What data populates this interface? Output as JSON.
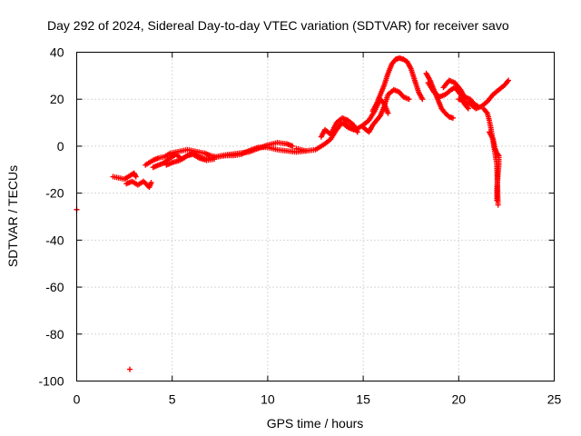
{
  "chart_data": {
    "type": "scatter",
    "title": "Day 292 of 2024, Sidereal Day-to-day VTEC variation (SDTVAR) for receiver savo",
    "xlabel": "GPS time / hours",
    "ylabel": "SDTVAR / TECUs",
    "xlim": [
      0,
      25
    ],
    "ylim": [
      -100,
      40
    ],
    "xticks": [
      0,
      5,
      10,
      15,
      20,
      25
    ],
    "yticks": [
      -100,
      -80,
      -60,
      -40,
      -20,
      0,
      20,
      40
    ],
    "grid": true,
    "marker": "+",
    "color": "#ff0000",
    "series": [
      {
        "name": "SDTVAR",
        "branches": [
          [
            [
              0.0,
              -27
            ]
          ],
          [
            [
              2.78,
              -95
            ]
          ],
          [
            [
              1.9,
              -13
            ],
            [
              2.2,
              -13.5
            ],
            [
              2.5,
              -14
            ],
            [
              2.8,
              -12.5
            ],
            [
              3.0,
              -11.5
            ],
            [
              3.1,
              -13
            ]
          ],
          [
            [
              2.6,
              -16
            ],
            [
              2.9,
              -15
            ],
            [
              3.2,
              -16.5
            ],
            [
              3.5,
              -15
            ],
            [
              3.8,
              -17.5
            ],
            [
              3.9,
              -15.5
            ]
          ],
          [
            [
              3.6,
              -8
            ],
            [
              4.0,
              -6
            ],
            [
              4.3,
              -5
            ],
            [
              4.6,
              -4.5
            ],
            [
              4.9,
              -3
            ],
            [
              5.2,
              -2.5
            ],
            [
              5.5,
              -2
            ],
            [
              5.8,
              -1.5
            ],
            [
              6.1,
              -2
            ],
            [
              6.4,
              -2.5
            ],
            [
              6.7,
              -3
            ],
            [
              7.0,
              -4
            ],
            [
              7.3,
              -4.5
            ],
            [
              7.6,
              -4
            ],
            [
              8.0,
              -3.5
            ],
            [
              8.5,
              -3
            ],
            [
              9.0,
              -2.5
            ],
            [
              9.5,
              -1
            ],
            [
              10.0,
              0.5
            ],
            [
              10.5,
              1.5
            ],
            [
              11.0,
              1
            ],
            [
              11.3,
              0
            ]
          ],
          [
            [
              4.0,
              -9
            ],
            [
              4.3,
              -8
            ],
            [
              4.6,
              -7
            ],
            [
              4.9,
              -5
            ],
            [
              5.2,
              -3.5
            ],
            [
              5.5,
              -5.5
            ],
            [
              5.8,
              -4
            ],
            [
              6.1,
              -3
            ],
            [
              6.4,
              -4.5
            ],
            [
              6.7,
              -5.5
            ],
            [
              7.0,
              -5
            ],
            [
              7.4,
              -4.5
            ],
            [
              7.8,
              -4
            ],
            [
              8.2,
              -4
            ],
            [
              8.6,
              -3.5
            ],
            [
              9.0,
              -2
            ],
            [
              9.5,
              -0.5
            ],
            [
              10.0,
              -0.5
            ],
            [
              10.5,
              -1.5
            ],
            [
              11.0,
              -2
            ],
            [
              11.5,
              -2.5
            ],
            [
              12.0,
              -2
            ]
          ],
          [
            [
              4.7,
              -8
            ],
            [
              5.0,
              -7
            ],
            [
              5.4,
              -6
            ],
            [
              5.8,
              -4
            ],
            [
              6.1,
              -3.5
            ],
            [
              6.4,
              -5
            ],
            [
              6.8,
              -6
            ],
            [
              7.2,
              -5.5
            ]
          ],
          [
            [
              11.5,
              -1
            ],
            [
              12.0,
              -2
            ],
            [
              12.5,
              -1.5
            ],
            [
              13.0,
              1
            ],
            [
              13.3,
              3
            ],
            [
              13.6,
              7
            ],
            [
              13.9,
              10
            ],
            [
              14.2,
              8
            ],
            [
              14.5,
              7
            ]
          ],
          [
            [
              12.8,
              4
            ],
            [
              13.0,
              7
            ],
            [
              13.3,
              5
            ],
            [
              13.6,
              10
            ],
            [
              13.9,
              12
            ],
            [
              14.2,
              11
            ],
            [
              14.5,
              9
            ],
            [
              14.7,
              6
            ]
          ],
          [
            [
              14.0,
              10
            ],
            [
              14.3,
              8
            ],
            [
              14.6,
              7
            ],
            [
              15.0,
              9
            ],
            [
              15.3,
              11
            ],
            [
              15.6,
              15
            ],
            [
              15.9,
              20
            ],
            [
              16.1,
              18
            ],
            [
              16.3,
              14
            ]
          ],
          [
            [
              15.0,
              8
            ],
            [
              15.3,
              6
            ],
            [
              15.5,
              9
            ],
            [
              15.7,
              11
            ],
            [
              15.9,
              13
            ],
            [
              16.1,
              17
            ],
            [
              16.3,
              22
            ],
            [
              16.6,
              24
            ],
            [
              16.9,
              23
            ],
            [
              17.1,
              21
            ],
            [
              17.4,
              20
            ]
          ],
          [
            [
              15.5,
              15
            ],
            [
              15.7,
              18
            ],
            [
              15.9,
              22
            ],
            [
              16.1,
              26
            ],
            [
              16.3,
              31
            ],
            [
              16.5,
              35
            ],
            [
              16.7,
              37
            ],
            [
              16.9,
              37.5
            ],
            [
              17.1,
              37
            ],
            [
              17.3,
              36
            ],
            [
              17.5,
              33
            ],
            [
              17.7,
              28
            ],
            [
              17.9,
              23
            ],
            [
              18.1,
              20
            ]
          ],
          [
            [
              18.3,
              31
            ],
            [
              18.5,
              28
            ],
            [
              18.7,
              24
            ],
            [
              18.9,
              20
            ],
            [
              19.1,
              16
            ],
            [
              19.3,
              14
            ],
            [
              19.5,
              12.5
            ],
            [
              19.7,
              12
            ]
          ],
          [
            [
              18.4,
              27
            ],
            [
              18.7,
              23
            ],
            [
              19.0,
              21
            ],
            [
              19.3,
              22
            ],
            [
              19.6,
              24
            ],
            [
              19.8,
              25
            ],
            [
              20.1,
              22
            ],
            [
              20.3,
              18
            ],
            [
              20.5,
              16
            ]
          ],
          [
            [
              19.2,
              25
            ],
            [
              19.5,
              28
            ],
            [
              19.8,
              27
            ],
            [
              20.1,
              24
            ],
            [
              20.3,
              21
            ],
            [
              20.6,
              20
            ],
            [
              20.8,
              18
            ],
            [
              21.0,
              17
            ]
          ],
          [
            [
              20.0,
              20
            ],
            [
              20.3,
              19
            ],
            [
              20.6,
              18
            ],
            [
              20.9,
              16
            ],
            [
              21.2,
              17
            ],
            [
              21.5,
              19
            ],
            [
              21.8,
              22
            ],
            [
              22.1,
              24
            ],
            [
              22.4,
              26
            ],
            [
              22.6,
              28
            ]
          ],
          [
            [
              21.3,
              16
            ],
            [
              21.5,
              14
            ],
            [
              21.6,
              11
            ],
            [
              21.7,
              7
            ],
            [
              21.8,
              2
            ],
            [
              21.9,
              -3
            ],
            [
              22.0,
              -8
            ],
            [
              22.02,
              -14
            ],
            [
              22.04,
              -20
            ],
            [
              22.06,
              -25
            ]
          ],
          [
            [
              21.6,
              6
            ],
            [
              21.8,
              3
            ],
            [
              21.9,
              -1
            ],
            [
              22.0,
              -3
            ],
            [
              22.1,
              -4
            ],
            [
              22.1,
              -8
            ],
            [
              22.05,
              -13
            ],
            [
              22.0,
              -18
            ],
            [
              22.0,
              -23
            ]
          ]
        ]
      }
    ]
  }
}
